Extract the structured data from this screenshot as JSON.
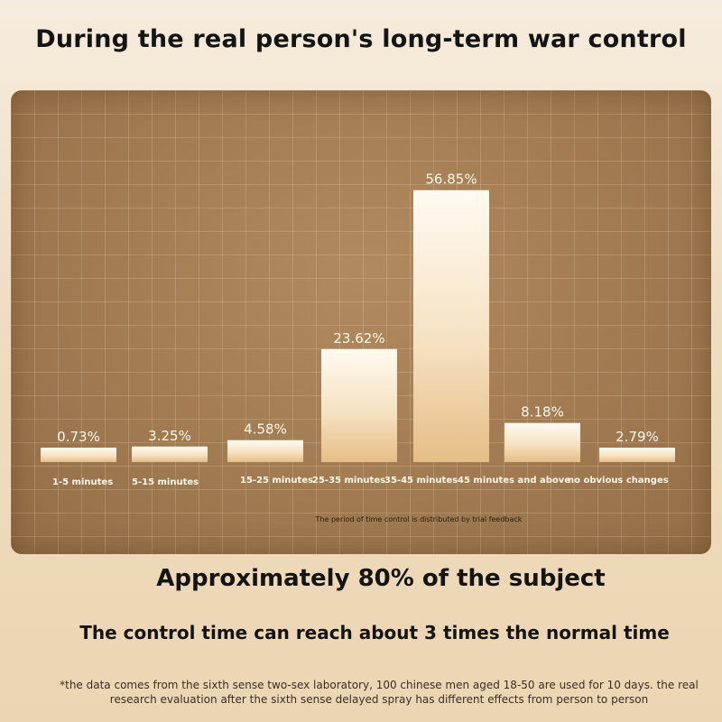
{
  "title": "During the real person's long-term war control",
  "chart_data": {
    "type": "bar",
    "categories": [
      "1-5 minutes",
      "5-15 minutes",
      "15-25 minutes",
      "25-35 minutes",
      "35-45 minutes",
      "45 minutes and above",
      "no obvious changes"
    ],
    "values": [
      0.73,
      3.25,
      4.58,
      23.62,
      56.85,
      8.18,
      2.79
    ],
    "value_labels": [
      "0.73%",
      "3.25%",
      "4.58%",
      "23.62%",
      "56.85%",
      "8.18%",
      "2.79%"
    ],
    "note": "The period of time control is distributed by trial feedback",
    "grid": true
  },
  "headline": "Approximately 80% of the subject",
  "subheadline": "The control time can reach about 3 times the normal time",
  "footnote": "*the data comes from the sixth sense two-sex laboratory, 100 chinese men aged 18-50 are used for 10 days. the real research evaluation after the sixth sense delayed spray has different effects from person to person",
  "colors": {
    "panel": "#a27b52",
    "bar_top": "#fffaf1",
    "bar_bottom": "#e9c28f",
    "label": "#fff7ea"
  }
}
